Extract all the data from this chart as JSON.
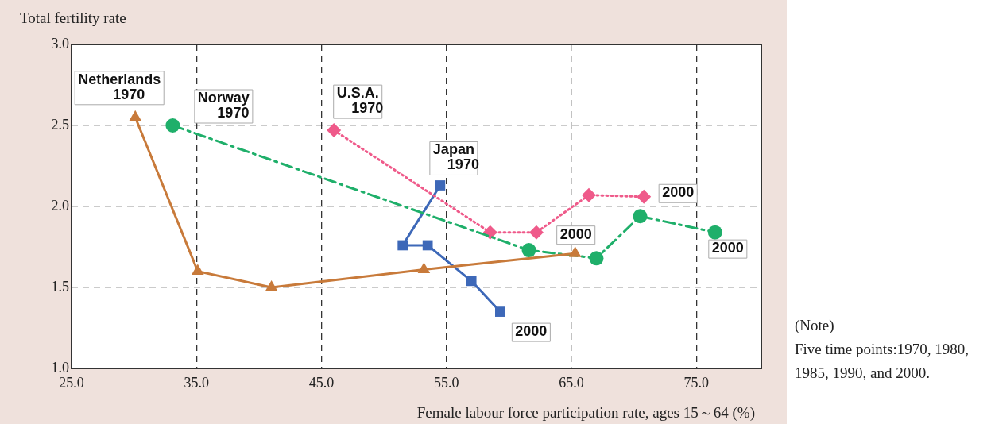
{
  "chart_data": {
    "type": "line",
    "xlabel": "Female labour force participation rate, ages 15～64 (%)",
    "ylabel": "Total fertility rate",
    "xlim": [
      25,
      80.2
    ],
    "ylim": [
      1,
      3
    ],
    "xticks": [
      {
        "value": 25,
        "label": "25.0"
      },
      {
        "value": 35,
        "label": "35.0"
      },
      {
        "value": 45,
        "label": "45.0"
      },
      {
        "value": 55,
        "label": "55.0"
      },
      {
        "value": 65,
        "label": "65.0"
      },
      {
        "value": 75,
        "label": "75.0"
      }
    ],
    "yticks": [
      {
        "value": 1,
        "label": "1.0"
      },
      {
        "value": 1.5,
        "label": "1.5"
      },
      {
        "value": 2,
        "label": "2.0"
      },
      {
        "value": 2.5,
        "label": "2.5"
      },
      {
        "value": 3,
        "label": "3.0"
      }
    ],
    "grid": true,
    "legend": false,
    "series": [
      {
        "color": "#c87a3a",
        "marker": "triangle",
        "line_style": "solid",
        "x": [
          30.1,
          35.1,
          41.0,
          53.2,
          65.3
        ],
        "values": [
          2.55,
          1.6,
          1.5,
          1.61,
          1.71
        ]
      },
      {
        "color": "#1faf6a",
        "marker": "circle",
        "line_style": "dashed",
        "x": [
          33.1,
          61.6,
          67.0,
          70.5,
          76.5
        ],
        "values": [
          2.5,
          1.73,
          1.68,
          1.94,
          1.84
        ]
      },
      {
        "color": "#ef5a8a",
        "marker": "diamond",
        "line_style": "dotted",
        "x": [
          46.0,
          58.5,
          62.2,
          66.4,
          70.8
        ],
        "values": [
          2.47,
          1.84,
          1.84,
          2.07,
          2.06
        ]
      },
      {
        "color": "#3d68b8",
        "marker": "square",
        "line_style": "solid",
        "x": [
          54.5,
          51.5,
          53.5,
          57.0,
          59.3
        ],
        "values": [
          2.13,
          1.76,
          1.76,
          1.54,
          1.35
        ]
      }
    ],
    "annotations": [
      {
        "text": "Netherlands\n1970",
        "x": 30.1,
        "y": 2.55
      },
      {
        "text": "Norway\n1970",
        "x": 33.1,
        "y": 2.5
      },
      {
        "text": "U.S.A.\n1970",
        "x": 46.0,
        "y": 2.47
      },
      {
        "text": "Japan\n1970",
        "x": 54.5,
        "y": 2.13
      },
      {
        "text": "2000",
        "x": 70.8,
        "y": 2.06
      },
      {
        "text": "2000",
        "x": 65.3,
        "y": 1.71
      },
      {
        "text": "2000",
        "x": 76.5,
        "y": 1.84
      },
      {
        "text": "2000",
        "x": 59.3,
        "y": 1.35
      },
      "(Note)\nFive time points:1970, 1980, 1985, 1990, and 2000."
    ]
  }
}
